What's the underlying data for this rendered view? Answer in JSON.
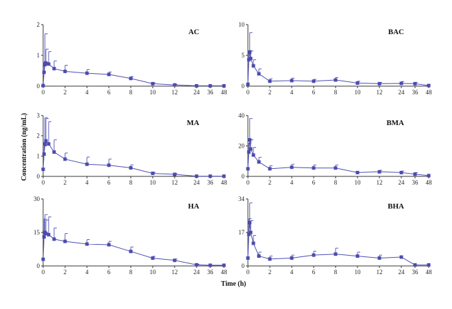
{
  "figure": {
    "ylabel": "Concentration (ng/mL)",
    "xlabel": "Time (h)",
    "series_color": "#4b4bb0"
  },
  "chart_data": [
    {
      "type": "line",
      "title": "AC",
      "x_ticks": [
        "0",
        "2",
        "4",
        "6",
        "8",
        "10",
        "12",
        "24",
        "36",
        "48"
      ],
      "ylim": [
        0,
        2
      ],
      "y_ticks": [
        "0",
        "1",
        "2"
      ],
      "points": [
        {
          "x": "0",
          "y": 0.02,
          "err": 0
        },
        {
          "x": "0.083",
          "y": 0.45,
          "err": 0.35
        },
        {
          "x": "0.167",
          "y": 0.7,
          "err": 1.0
        },
        {
          "x": "0.25",
          "y": 0.75,
          "err": 0.45
        },
        {
          "x": "0.5",
          "y": 0.72,
          "err": 0.4
        },
        {
          "x": "1",
          "y": 0.57,
          "err": 0.25
        },
        {
          "x": "2",
          "y": 0.48,
          "err": 0.2
        },
        {
          "x": "4",
          "y": 0.42,
          "err": 0.12
        },
        {
          "x": "6",
          "y": 0.38,
          "err": 0.08
        },
        {
          "x": "8",
          "y": 0.25,
          "err": 0.06
        },
        {
          "x": "10",
          "y": 0.08,
          "err": 0.03
        },
        {
          "x": "12",
          "y": 0.04,
          "err": 0.02
        },
        {
          "x": "24",
          "y": 0.01,
          "err": 0
        },
        {
          "x": "36",
          "y": 0.01,
          "err": 0
        },
        {
          "x": "48",
          "y": 0.01,
          "err": 0
        }
      ]
    },
    {
      "type": "line",
      "title": "BAC",
      "x_ticks": [
        "0",
        "2",
        "4",
        "6",
        "8",
        "10",
        "12",
        "24",
        "36",
        "48"
      ],
      "ylim": [
        0,
        10
      ],
      "y_ticks": [
        "0",
        "5",
        "10"
      ],
      "points": [
        {
          "x": "0",
          "y": 0.3,
          "err": 0
        },
        {
          "x": "0.083",
          "y": 4.3,
          "err": 1.5
        },
        {
          "x": "0.167",
          "y": 5.5,
          "err": 3.2
        },
        {
          "x": "0.25",
          "y": 4.5,
          "err": 1.2
        },
        {
          "x": "0.5",
          "y": 3.3,
          "err": 1.0
        },
        {
          "x": "1",
          "y": 2.0,
          "err": 0.8
        },
        {
          "x": "2",
          "y": 0.8,
          "err": 0.4
        },
        {
          "x": "4",
          "y": 0.9,
          "err": 0.4
        },
        {
          "x": "6",
          "y": 0.8,
          "err": 0.3
        },
        {
          "x": "8",
          "y": 1.0,
          "err": 0.4
        },
        {
          "x": "10",
          "y": 0.5,
          "err": 0.3
        },
        {
          "x": "12",
          "y": 0.4,
          "err": 0.2
        },
        {
          "x": "24",
          "y": 0.45,
          "err": 0.3
        },
        {
          "x": "36",
          "y": 0.4,
          "err": 0.2
        },
        {
          "x": "48",
          "y": 0.1,
          "err": 0
        }
      ]
    },
    {
      "type": "line",
      "title": "MA",
      "x_ticks": [
        "0",
        "2",
        "4",
        "6",
        "8",
        "10",
        "12",
        "24",
        "36",
        "48"
      ],
      "ylim": [
        0,
        3
      ],
      "y_ticks": [
        "0",
        "1",
        "2",
        "3"
      ],
      "points": [
        {
          "x": "0",
          "y": 0.35,
          "err": 0
        },
        {
          "x": "0.083",
          "y": 1.1,
          "err": 0.4
        },
        {
          "x": "0.167",
          "y": 1.6,
          "err": 1.3
        },
        {
          "x": "0.25",
          "y": 1.75,
          "err": 1.1
        },
        {
          "x": "0.5",
          "y": 1.6,
          "err": 1.1
        },
        {
          "x": "1",
          "y": 1.2,
          "err": 0.6
        },
        {
          "x": "2",
          "y": 0.85,
          "err": 0.3
        },
        {
          "x": "4",
          "y": 0.6,
          "err": 0.35
        },
        {
          "x": "6",
          "y": 0.55,
          "err": 0.3
        },
        {
          "x": "8",
          "y": 0.42,
          "err": 0.15
        },
        {
          "x": "10",
          "y": 0.15,
          "err": 0.05
        },
        {
          "x": "12",
          "y": 0.1,
          "err": 0.04
        },
        {
          "x": "24",
          "y": 0.01,
          "err": 0
        },
        {
          "x": "36",
          "y": 0.01,
          "err": 0
        },
        {
          "x": "48",
          "y": 0.01,
          "err": 0
        }
      ]
    },
    {
      "type": "line",
      "title": "BMA",
      "x_ticks": [
        "0",
        "2",
        "4",
        "6",
        "8",
        "10",
        "12",
        "24",
        "36",
        "48"
      ],
      "ylim": [
        0,
        40
      ],
      "y_ticks": [
        "0",
        "20",
        "40"
      ],
      "points": [
        {
          "x": "0",
          "y": 5,
          "err": 0
        },
        {
          "x": "0.083",
          "y": 16,
          "err": 6
        },
        {
          "x": "0.167",
          "y": 24,
          "err": 14
        },
        {
          "x": "0.25",
          "y": 18,
          "err": 6
        },
        {
          "x": "0.5",
          "y": 14,
          "err": 5
        },
        {
          "x": "1",
          "y": 9.5,
          "err": 3
        },
        {
          "x": "2",
          "y": 5,
          "err": 2
        },
        {
          "x": "4",
          "y": 6,
          "err": 2
        },
        {
          "x": "6",
          "y": 5.5,
          "err": 2
        },
        {
          "x": "8",
          "y": 5.5,
          "err": 2
        },
        {
          "x": "10",
          "y": 2.5,
          "err": 0
        },
        {
          "x": "12",
          "y": 3,
          "err": 1
        },
        {
          "x": "24",
          "y": 2.5,
          "err": 1
        },
        {
          "x": "36",
          "y": 1.5,
          "err": 1
        },
        {
          "x": "48",
          "y": 0.5,
          "err": 0
        }
      ]
    },
    {
      "type": "line",
      "title": "HA",
      "x_ticks": [
        "0",
        "2",
        "4",
        "6",
        "8",
        "10",
        "12",
        "24",
        "36",
        "48"
      ],
      "ylim": [
        0,
        30
      ],
      "y_ticks": [
        "0",
        "15",
        "30"
      ],
      "points": [
        {
          "x": "0",
          "y": 3,
          "err": 0
        },
        {
          "x": "0.083",
          "y": 13,
          "err": 8
        },
        {
          "x": "0.167",
          "y": 15,
          "err": 8
        },
        {
          "x": "0.25",
          "y": 14.5,
          "err": 6
        },
        {
          "x": "0.5",
          "y": 14,
          "err": 8
        },
        {
          "x": "1",
          "y": 12,
          "err": 5
        },
        {
          "x": "2",
          "y": 11,
          "err": 3.5
        },
        {
          "x": "4",
          "y": 9.8,
          "err": 2
        },
        {
          "x": "6",
          "y": 9.5,
          "err": 1.5
        },
        {
          "x": "8",
          "y": 6.5,
          "err": 2
        },
        {
          "x": "10",
          "y": 3.5,
          "err": 0.8
        },
        {
          "x": "12",
          "y": 2.5,
          "err": 0.6
        },
        {
          "x": "24",
          "y": 0.5,
          "err": 0.3
        },
        {
          "x": "36",
          "y": 0.3,
          "err": 0
        },
        {
          "x": "48",
          "y": 0.3,
          "err": 0
        }
      ]
    },
    {
      "type": "line",
      "title": "BHA",
      "x_ticks": [
        "0",
        "2",
        "4",
        "6",
        "8",
        "10",
        "12",
        "24",
        "36",
        "48"
      ],
      "ylim": [
        0,
        34
      ],
      "y_ticks": [
        "0",
        "17",
        "34"
      ],
      "points": [
        {
          "x": "0",
          "y": 4,
          "err": 0
        },
        {
          "x": "0.083",
          "y": 16,
          "err": 8
        },
        {
          "x": "0.167",
          "y": 22,
          "err": 10
        },
        {
          "x": "0.25",
          "y": 17,
          "err": 6
        },
        {
          "x": "0.5",
          "y": 11.5,
          "err": 4
        },
        {
          "x": "1",
          "y": 5,
          "err": 2
        },
        {
          "x": "2",
          "y": 3.5,
          "err": 1.5
        },
        {
          "x": "4",
          "y": 4,
          "err": 1.5
        },
        {
          "x": "6",
          "y": 5.5,
          "err": 2
        },
        {
          "x": "8",
          "y": 6,
          "err": 3
        },
        {
          "x": "10",
          "y": 5,
          "err": 2
        },
        {
          "x": "12",
          "y": 4,
          "err": 1.5
        },
        {
          "x": "24",
          "y": 4.5,
          "err": 0
        },
        {
          "x": "36",
          "y": 0.5,
          "err": 0
        },
        {
          "x": "48",
          "y": 0.5,
          "err": 0
        }
      ]
    }
  ]
}
